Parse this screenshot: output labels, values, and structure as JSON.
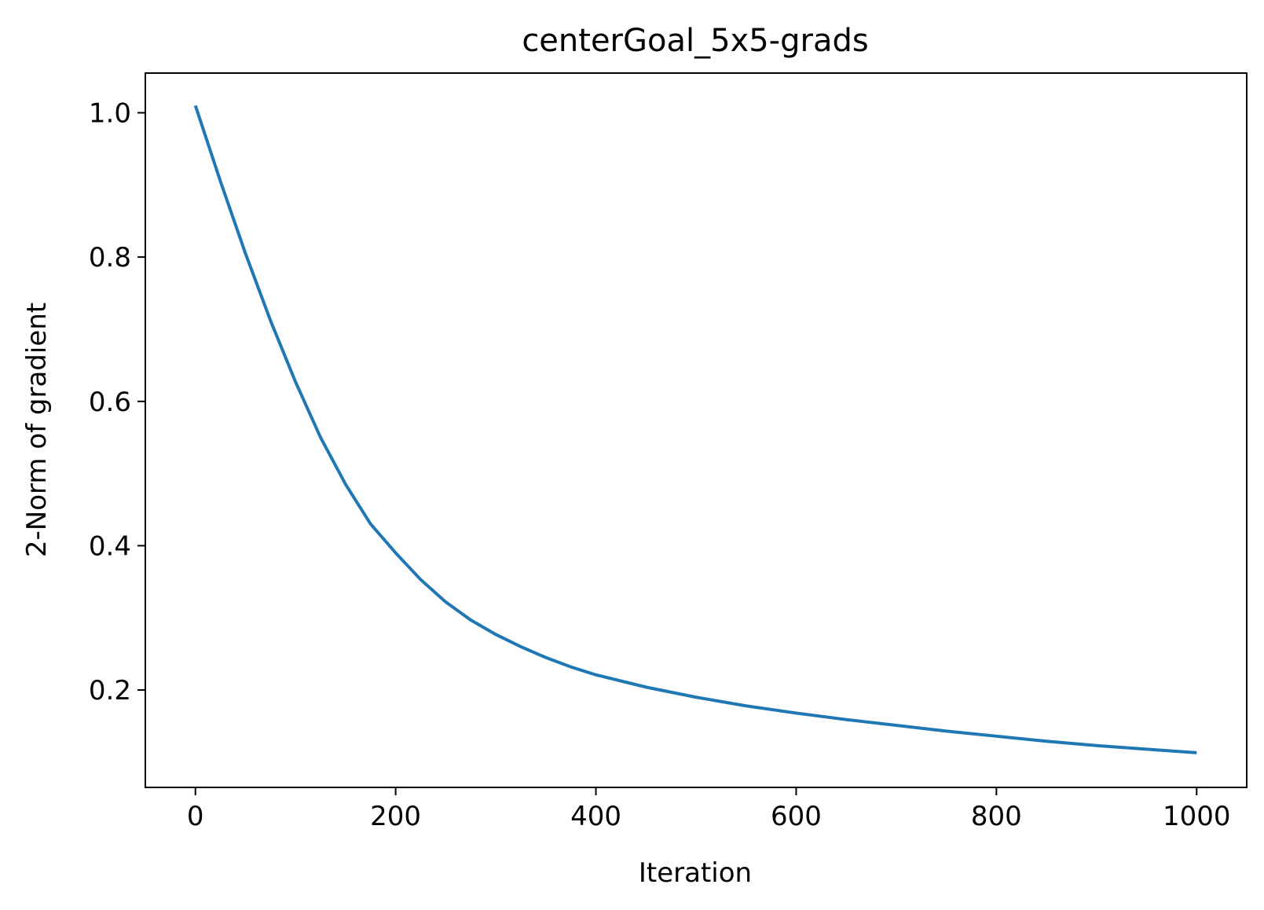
{
  "chart_data": {
    "type": "line",
    "title": "centerGoal_5x5-grads",
    "xlabel": "Iteration",
    "ylabel": "2-Norm of gradient",
    "xlim": [
      -50,
      1050
    ],
    "ylim": [
      0.065,
      1.055
    ],
    "xticks": [
      0,
      200,
      400,
      600,
      800,
      1000
    ],
    "xtick_labels": [
      "0",
      "200",
      "400",
      "600",
      "800",
      "1000"
    ],
    "yticks": [
      0.2,
      0.4,
      0.6,
      0.8,
      1.0
    ],
    "ytick_labels": [
      "0.2",
      "0.4",
      "0.6",
      "0.8",
      "1.0"
    ],
    "grid": false,
    "legend": "none",
    "series": [
      {
        "color": "#1f77b4",
        "x": [
          0,
          25,
          50,
          75,
          100,
          125,
          150,
          175,
          200,
          225,
          250,
          275,
          300,
          325,
          350,
          375,
          400,
          450,
          500,
          550,
          600,
          650,
          700,
          750,
          800,
          850,
          900,
          950,
          1000
        ],
        "y": [
          1.01,
          0.905,
          0.805,
          0.712,
          0.627,
          0.55,
          0.485,
          0.43,
          0.39,
          0.353,
          0.322,
          0.297,
          0.277,
          0.26,
          0.245,
          0.232,
          0.221,
          0.204,
          0.19,
          0.178,
          0.168,
          0.159,
          0.151,
          0.143,
          0.136,
          0.129,
          0.123,
          0.118,
          0.113
        ]
      }
    ]
  }
}
